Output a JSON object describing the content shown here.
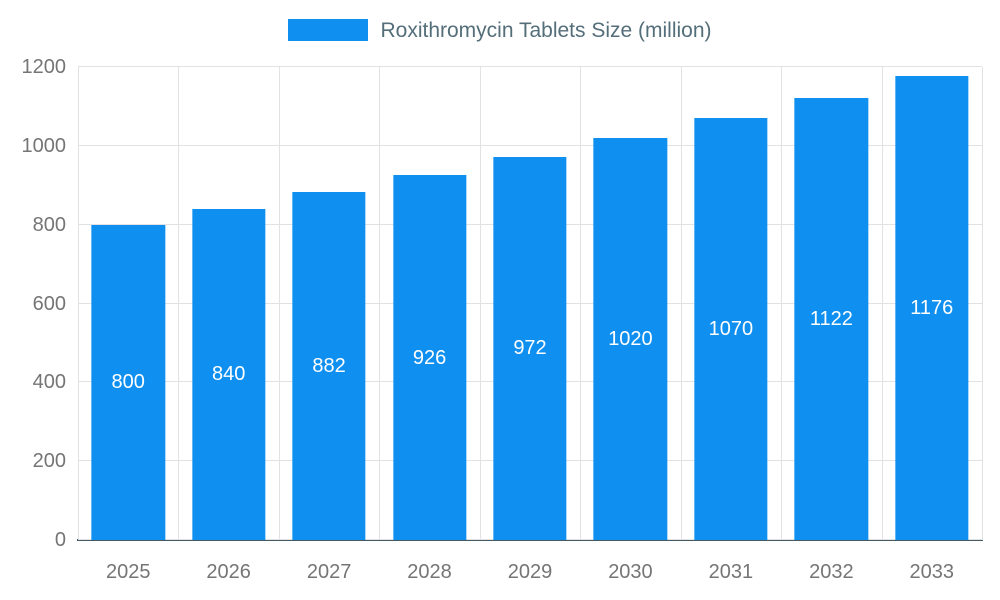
{
  "chart": {
    "legend": {
      "label": "Roxithromycin Tablets Size (million)"
    },
    "colors": {
      "bar": "#0f8ff0",
      "axis_text": "#757575",
      "legend_text": "#546e7a",
      "grid": "#e2e2e2",
      "axis_line": "#455a64",
      "value_label": "#ffffff"
    }
  },
  "chart_data": {
    "type": "bar",
    "title": "Roxithromycin Tablets Size (million)",
    "categories": [
      "2025",
      "2026",
      "2027",
      "2028",
      "2029",
      "2030",
      "2031",
      "2032",
      "2033"
    ],
    "values": [
      800,
      840,
      882,
      926,
      972,
      1020,
      1070,
      1122,
      1176
    ],
    "xlabel": "",
    "ylabel": "",
    "ylim": [
      0,
      1200
    ],
    "y_ticks": [
      0,
      200,
      400,
      600,
      800,
      1000,
      1200
    ],
    "grid": true,
    "legend_position": "top",
    "bar_color": "#0f8ff0",
    "bar_width_fraction": 0.73,
    "value_labels": true
  }
}
